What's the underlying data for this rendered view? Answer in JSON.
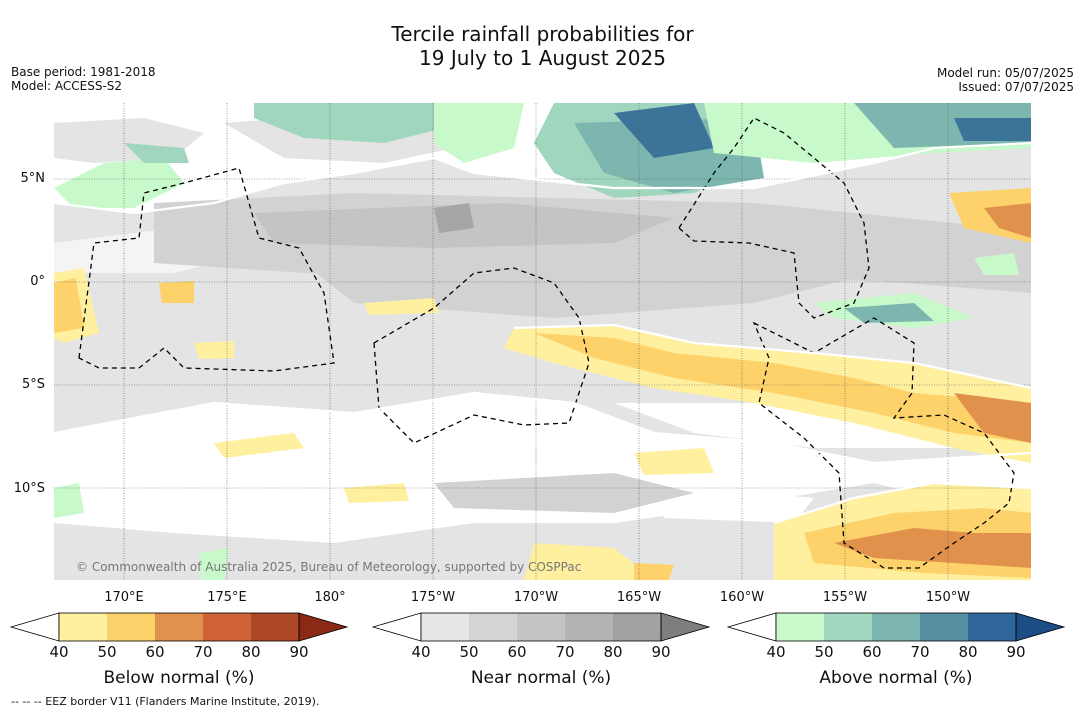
{
  "title_line1": "Tercile rainfall probabilities for",
  "title_line2": "19 July to 1 August 2025",
  "meta_left": {
    "base_period": "Base period: 1981-2018",
    "model": "Model: ACCESS-S2"
  },
  "meta_right": {
    "model_run": "Model run: 05/07/2025",
    "issued": "Issued: 07/07/2025"
  },
  "map": {
    "copyright": "© Commonwealth of Australia 2025, Bureau of Meteorology, supported by COSPPac",
    "lat_labels": [
      "5°N",
      "0°",
      "5°S",
      "10°S"
    ],
    "lon_labels": [
      "170°E",
      "175°E",
      "180°",
      "175°W",
      "170°W",
      "165°W",
      "160°W",
      "155°W",
      "150°W"
    ]
  },
  "colorbars": [
    {
      "title": "Below normal (%)",
      "ticks": [
        "40",
        "50",
        "60",
        "70",
        "80",
        "90"
      ],
      "colors": [
        "#ffffff",
        "#fff0a0",
        "#fdd26b",
        "#e0914b",
        "#cf6236",
        "#ad4826",
        "#8a2a14"
      ]
    },
    {
      "title": "Near normal (%)",
      "ticks": [
        "40",
        "50",
        "60",
        "70",
        "80",
        "90"
      ],
      "colors": [
        "#ffffff",
        "#e6e6e6",
        "#d4d4d4",
        "#c4c4c4",
        "#b4b4b4",
        "#a2a2a2",
        "#7e7e7e"
      ]
    },
    {
      "title": "Above normal (%)",
      "ticks": [
        "40",
        "50",
        "60",
        "70",
        "80",
        "90"
      ],
      "colors": [
        "#ffffff",
        "#c8f9cb",
        "#a1d6be",
        "#7db6ae",
        "#5690a2",
        "#2f6699",
        "#1d4d85"
      ]
    }
  ],
  "footnote": "--  --  -- EEZ border V11 (Flanders Marine Institute, 2019)."
}
